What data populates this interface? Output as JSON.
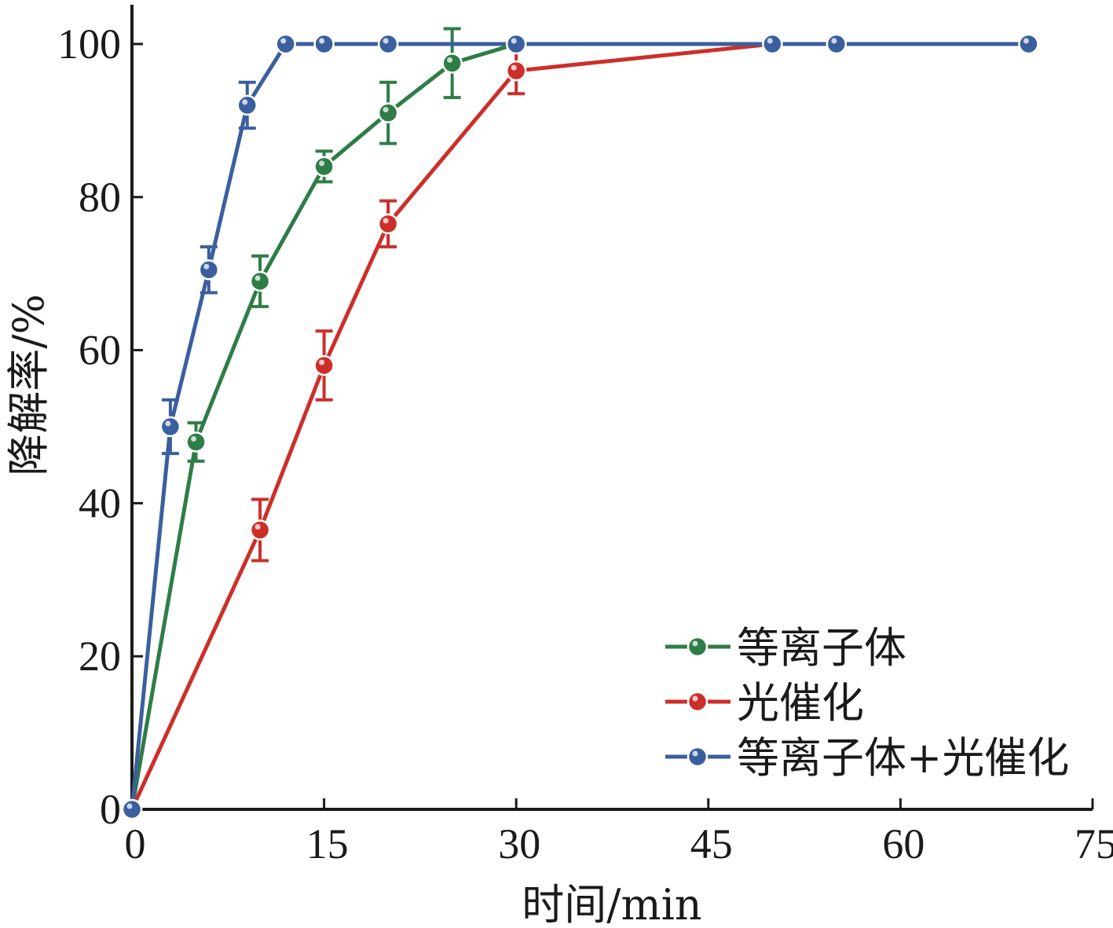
{
  "chart_data": {
    "type": "line",
    "title": "",
    "xlabel": "时间/min",
    "ylabel": "降解率/%",
    "xlim": [
      0,
      75
    ],
    "ylim": [
      0,
      100
    ],
    "xticks": [
      "0",
      "15",
      "30",
      "45",
      "60",
      "75"
    ],
    "yticks": [
      "0",
      "20",
      "40",
      "60",
      "80",
      "100"
    ],
    "legend_position": "bottom-right",
    "grid": false,
    "series": [
      {
        "name": "等离子体",
        "color": "#2e7d47",
        "x": [
          0,
          5,
          10,
          15,
          20,
          25,
          30
        ],
        "y": [
          0,
          48,
          69,
          84,
          91,
          97.5,
          100
        ],
        "err": [
          0,
          2.5,
          3.3,
          2,
          4,
          4.5,
          0
        ]
      },
      {
        "name": "光催化",
        "color": "#cc2f2a",
        "x": [
          0,
          10,
          15,
          20,
          30,
          50
        ],
        "y": [
          0,
          36.5,
          58,
          76.5,
          96.5,
          100
        ],
        "err": [
          0,
          4,
          4.5,
          3,
          3,
          0
        ]
      },
      {
        "name": "等离子体+光催化",
        "color": "#3b5f9e",
        "x": [
          0,
          3,
          6,
          9,
          12,
          15,
          20,
          30,
          50,
          55,
          70
        ],
        "y": [
          0,
          50,
          70.5,
          92,
          100,
          100,
          100,
          100,
          100,
          100,
          100
        ],
        "err": [
          0,
          3.5,
          3,
          3,
          0,
          0,
          0,
          0,
          0,
          0,
          0
        ]
      }
    ]
  }
}
